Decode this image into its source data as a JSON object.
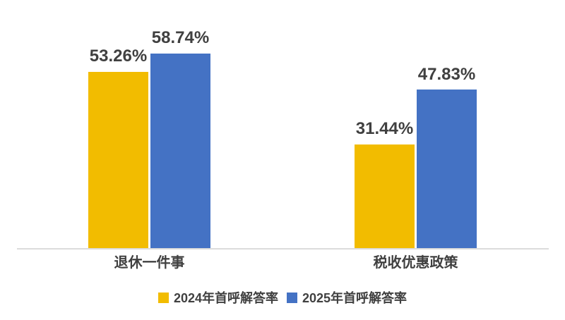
{
  "chart_data": {
    "type": "bar",
    "title": "",
    "xlabel": "",
    "ylabel": "",
    "categories": [
      "退休一件事",
      "税收优惠政策"
    ],
    "series": [
      {
        "name": "2024年首呼解答率",
        "color": "#F2BC00",
        "values": [
          53.26,
          31.44
        ],
        "labels": [
          "53.26%",
          "31.44%"
        ]
      },
      {
        "name": "2025年首呼解答率",
        "color": "#4472C4",
        "values": [
          58.74,
          47.83
        ],
        "labels": [
          "58.74%",
          "47.83%"
        ]
      }
    ],
    "value_suffix": "%",
    "ylim": [
      0,
      75
    ],
    "grid": false,
    "legend_position": "bottom"
  },
  "colors": {
    "label_text": "#404040",
    "category_text": "#404040",
    "legend_text": "#404040",
    "axis_line": "#DCDCDC",
    "background": "#FFFFFF"
  }
}
